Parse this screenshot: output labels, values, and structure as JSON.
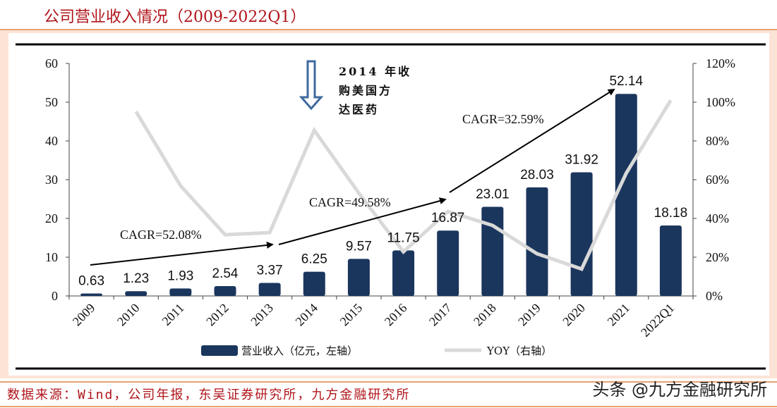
{
  "header": {
    "title": "公司营业收入情况（2009-2022Q1）"
  },
  "footer": {
    "source": "数据来源：Wind，公司年报，东吴证券研究所，九方金融研究所",
    "watermark": "头条 @九方金融研究所"
  },
  "chart_data": {
    "type": "bar+line",
    "categories": [
      "2009",
      "2010",
      "2011",
      "2012",
      "2013",
      "2014",
      "2015",
      "2016",
      "2017",
      "2018",
      "2019",
      "2020",
      "2021",
      "2022Q1"
    ],
    "series": [
      {
        "name": "营业收入（亿元，左轴）",
        "type": "bar",
        "axis": "left",
        "color": "#1b365d",
        "values": [
          0.63,
          1.23,
          1.93,
          2.54,
          3.37,
          6.25,
          9.57,
          11.75,
          16.87,
          23.01,
          28.03,
          31.92,
          52.14,
          18.18
        ],
        "labels": [
          "0.63",
          "1.23",
          "1.93",
          "2.54",
          "3.37",
          "6.25",
          "9.57",
          "11.75",
          "16.87",
          "23.01",
          "28.03",
          "31.92",
          "52.14",
          "18.18"
        ]
      },
      {
        "name": "YOY（右轴）",
        "type": "line",
        "axis": "right",
        "color": "#d9d9d9",
        "values": [
          null,
          95.2,
          56.9,
          31.6,
          32.7,
          85.5,
          53.1,
          22.8,
          43.6,
          36.4,
          21.8,
          13.9,
          63.3,
          101
        ]
      }
    ],
    "left_axis": {
      "ylim": [
        0,
        60
      ],
      "ticks": [
        "0",
        "10",
        "20",
        "30",
        "40",
        "50",
        "60"
      ]
    },
    "right_axis": {
      "ylim": [
        0,
        120
      ],
      "ticks": [
        "0%",
        "20%",
        "40%",
        "60%",
        "80%",
        "100%",
        "120%"
      ]
    },
    "annotations": {
      "cagr": [
        {
          "label": "CAGR=52.08%",
          "from": "2009",
          "to": "2013"
        },
        {
          "label": "CAGR=49.58%",
          "from": "2013",
          "to": "2017"
        },
        {
          "label": "CAGR=32.59%",
          "from": "2017",
          "to": "2021"
        }
      ],
      "event_lines": [
        "2014 年收",
        "购美国方",
        "达医药"
      ],
      "event_category": "2014"
    },
    "grid": false,
    "legend": "bottom"
  }
}
